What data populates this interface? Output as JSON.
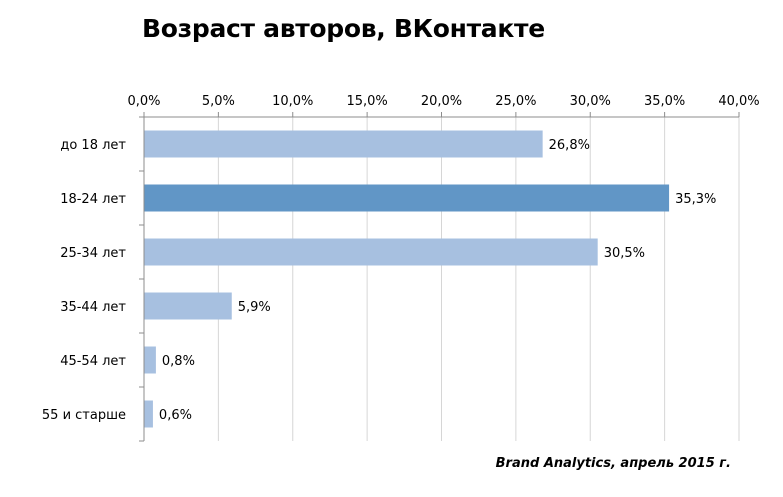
{
  "chart_data": {
    "type": "bar",
    "orientation": "horizontal",
    "title": "Возраст авторов, ВКонтакте",
    "categories": [
      "до 18 лет",
      "18-24 лет",
      "25-34 лет",
      "35-44 лет",
      "45-54 лет",
      "55 и старше"
    ],
    "values": [
      26.8,
      35.3,
      30.5,
      5.9,
      0.8,
      0.6
    ],
    "value_labels": [
      "26,8%",
      "35,3%",
      "30,5%",
      "5,9%",
      "0,8%",
      "0,6%"
    ],
    "xlim": [
      0,
      40
    ],
    "x_ticks": [
      0,
      5,
      10,
      15,
      20,
      25,
      30,
      35,
      40
    ],
    "x_tick_labels": [
      "0,0%",
      "5,0%",
      "10,0%",
      "15,0%",
      "20,0%",
      "25,0%",
      "30,0%",
      "35,0%",
      "40,0%"
    ],
    "x_axis_position": "top",
    "grid": true,
    "legend": "none",
    "highlighted_category": "18-24 лет",
    "colors": {
      "bar": "#a7c0e0",
      "highlight": "#6196c6",
      "grid": "#d6d6d6",
      "axis": "#8c8c8c"
    }
  },
  "source": "Brand Analytics, апрель 2015 г."
}
